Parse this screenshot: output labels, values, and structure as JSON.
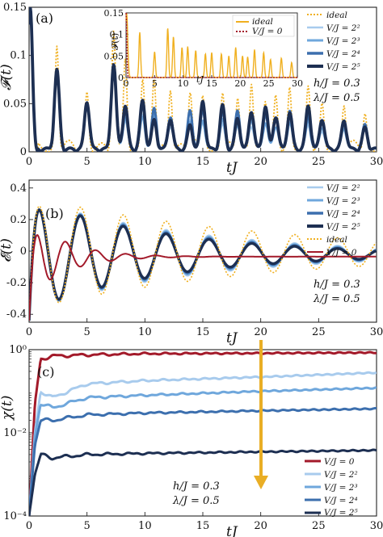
{
  "colors": {
    "ideal": "#f0b020",
    "v0": "#a31a2a",
    "v4": "#a8cbed",
    "v8": "#6fa7dc",
    "v16": "#3c6fae",
    "v32": "#1d2f52",
    "arrow": "#e9ae25"
  },
  "chart_data": [
    {
      "type": "line",
      "panel_label": "(a)",
      "ylabel": "𝓕(t)",
      "xlabel": "tJ",
      "xlim": [
        0,
        30
      ],
      "ylim": [
        0,
        0.15
      ],
      "xticks": [
        "0",
        "5",
        "10",
        "15",
        "20",
        "25",
        "30"
      ],
      "yticks": [
        "0",
        "0.05",
        "0.1",
        "0.15"
      ],
      "legend": [
        "ideal",
        "V/J = 2²",
        "V/J = 2³",
        "V/J = 2⁴",
        "V/J = 2⁵"
      ],
      "params": [
        "h/J = 0.3",
        "λ/J = 0.5"
      ],
      "peaks_t": [
        0.1,
        2.4,
        5.0,
        7.3,
        8.3,
        9.8,
        10.8,
        12.2,
        13.9,
        15.0,
        16.7,
        18.0,
        19.2,
        20.4,
        21.3,
        22.5,
        24.1,
        25.3,
        27.2,
        29.0
      ],
      "series": [
        {
          "name": "ideal",
          "values": [
            0.15,
            0.105,
            0.06,
            0.115,
            0.095,
            0.07,
            0.072,
            0.063,
            0.055,
            0.058,
            0.055,
            0.05,
            0.07,
            0.05,
            0.048,
            0.065,
            0.058,
            0.042,
            0.045,
            0.035
          ]
        },
        {
          "name": "V/J = 2²",
          "values": [
            0.15,
            0.08,
            0.047,
            0.085,
            0.03,
            0.035,
            0.03,
            0.025,
            0.03,
            0.028,
            0.025,
            0.03,
            0.025,
            0.028,
            0.025,
            0.03,
            0.025,
            0.02,
            0.025,
            0.02
          ]
        },
        {
          "name": "V/J = 2³",
          "values": [
            0.15,
            0.08,
            0.048,
            0.086,
            0.033,
            0.033,
            0.035,
            0.03,
            0.028,
            0.03,
            0.03,
            0.025,
            0.032,
            0.028,
            0.025,
            0.028,
            0.03,
            0.024,
            0.022,
            0.02
          ]
        },
        {
          "name": "V/J = 2⁴",
          "values": [
            0.15,
            0.081,
            0.049,
            0.087,
            0.04,
            0.045,
            0.042,
            0.035,
            0.04,
            0.042,
            0.038,
            0.04,
            0.04,
            0.038,
            0.035,
            0.04,
            0.035,
            0.03,
            0.03,
            0.025
          ]
        },
        {
          "name": "V/J = 2⁵",
          "values": [
            0.15,
            0.082,
            0.05,
            0.088,
            0.045,
            0.05,
            0.03,
            0.032,
            0.025,
            0.05,
            0.045,
            0.032,
            0.04,
            0.045,
            0.035,
            0.038,
            0.045,
            0.032,
            0.03,
            0.022
          ]
        }
      ],
      "inset": {
        "ylabel": "𝓕(t)",
        "xlabel": "tJ",
        "xlim": [
          0,
          30
        ],
        "ylim": [
          0,
          0.15
        ],
        "xticks": [
          "0",
          "5",
          "10",
          "15",
          "20",
          "25",
          "30"
        ],
        "yticks": [
          "0",
          "0.05",
          "0.1",
          "0.15"
        ],
        "legend": [
          "ideal",
          "V/J = 0"
        ],
        "peaks_t": [
          0.1,
          2.4,
          5.0,
          7.3,
          8.3,
          9.8,
          10.8,
          12.2,
          13.9,
          15.0,
          16.7,
          18.0,
          19.2,
          20.4,
          21.3,
          22.5,
          24.1,
          25.3,
          27.2,
          29.0
        ],
        "series": [
          {
            "name": "ideal",
            "values": [
              0.15,
              0.105,
              0.06,
              0.115,
              0.095,
              0.07,
              0.072,
              0.063,
              0.055,
              0.058,
              0.055,
              0.05,
              0.07,
              0.05,
              0.048,
              0.065,
              0.058,
              0.042,
              0.045,
              0.035
            ]
          },
          {
            "name": "V/J = 0",
            "values": [
              0.15,
              0,
              0,
              0,
              0,
              0,
              0,
              0,
              0,
              0,
              0,
              0,
              0,
              0,
              0,
              0,
              0,
              0,
              0,
              0
            ]
          }
        ]
      }
    },
    {
      "type": "line",
      "panel_label": "(b)",
      "ylabel": "𝓔(t)",
      "xlabel": "tJ",
      "xlim": [
        0,
        30
      ],
      "ylim": [
        -0.45,
        0.45
      ],
      "xticks": [
        "0",
        "5",
        "10",
        "15",
        "20",
        "25",
        "30"
      ],
      "yticks": [
        "-0.4",
        "-0.2",
        "0",
        "0.2",
        "0.4"
      ],
      "legend": [
        "V/J = 2²",
        "V/J = 2³",
        "V/J = 2⁴",
        "V/J = 2⁵",
        "ideal",
        "V/J = 0"
      ],
      "params": [
        "h/J = 0.3",
        "λ/J = 0.5"
      ],
      "series": [
        {
          "name": "ideal",
          "offset": -0.01,
          "amplitude": 0.36,
          "decay": 0.05,
          "period": 3.7
        },
        {
          "name": "V/J = 2²",
          "offset": -0.02,
          "amplitude": 0.355,
          "decay": 0.07,
          "period": 3.7
        },
        {
          "name": "V/J = 2³",
          "offset": -0.02,
          "amplitude": 0.355,
          "decay": 0.075,
          "period": 3.7
        },
        {
          "name": "V/J = 2⁴",
          "offset": -0.02,
          "amplitude": 0.355,
          "decay": 0.08,
          "period": 3.7
        },
        {
          "name": "V/J = 2⁵",
          "offset": -0.02,
          "amplitude": 0.355,
          "decay": 0.085,
          "period": 3.7
        },
        {
          "name": "V/J = 0",
          "offset": -0.035,
          "amplitude": 0.26,
          "decay": 0.32,
          "period": 2.6
        }
      ]
    },
    {
      "type": "line",
      "panel_label": "(c)",
      "ylabel": "χ(t)",
      "xlabel": "tJ",
      "yscale": "log",
      "xlim": [
        0,
        30
      ],
      "ylim": [
        0.0001,
        1
      ],
      "xticks": [
        "0",
        "5",
        "10",
        "15",
        "20",
        "25",
        "30"
      ],
      "yticks": [
        "10⁻⁴",
        "10⁻²",
        "10⁰"
      ],
      "legend": [
        "V/J = 0",
        "V/J = 2²",
        "V/J = 2³",
        "V/J = 2⁴",
        "V/J = 2⁵"
      ],
      "params": [
        "h/J = 0.3",
        "λ/J = 0.5"
      ],
      "series": [
        {
          "name": "V/J = 0",
          "x": [
            0,
            0.5,
            1,
            2,
            5,
            10,
            20,
            30
          ],
          "y": [
            0.0001,
            0.05,
            0.6,
            0.7,
            0.75,
            0.8,
            0.82,
            0.85
          ]
        },
        {
          "name": "V/J = 2²",
          "x": [
            0,
            0.5,
            1,
            2,
            5,
            10,
            20,
            30
          ],
          "y": [
            0.0001,
            0.01,
            0.1,
            0.07,
            0.15,
            0.18,
            0.22,
            0.28
          ]
        },
        {
          "name": "V/J = 2³",
          "x": [
            0,
            0.5,
            1,
            2,
            5,
            10,
            20,
            30
          ],
          "y": [
            0.0001,
            0.008,
            0.05,
            0.04,
            0.07,
            0.08,
            0.1,
            0.12
          ]
        },
        {
          "name": "V/J = 2⁴",
          "x": [
            0,
            0.5,
            1,
            2,
            5,
            10,
            20,
            30
          ],
          "y": [
            0.0001,
            0.005,
            0.02,
            0.02,
            0.027,
            0.03,
            0.034,
            0.038
          ]
        },
        {
          "name": "V/J = 2⁵",
          "x": [
            0,
            0.5,
            1,
            2,
            5,
            10,
            20,
            30
          ],
          "y": [
            0.0001,
            0.001,
            0.003,
            0.0025,
            0.003,
            0.0032,
            0.0035,
            0.0038
          ]
        }
      ]
    }
  ]
}
